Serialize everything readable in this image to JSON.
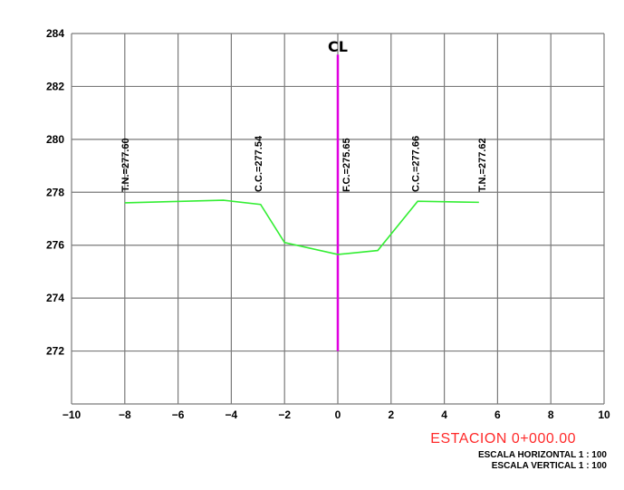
{
  "chart_data": {
    "type": "line",
    "centerline_label": "CL",
    "x_ticks": [
      "−10",
      "−8",
      "−6",
      "−4",
      "−2",
      "0",
      "2",
      "4",
      "6",
      "8",
      "10"
    ],
    "y_ticks": [
      "284",
      "282",
      "280",
      "278",
      "276",
      "274",
      "272"
    ],
    "xlim": [
      -10,
      10
    ],
    "ylim": [
      270,
      284
    ],
    "grid": true,
    "centerline": {
      "x": 0,
      "y_from": 272,
      "y_to": 283.2,
      "color": "#e000e0"
    },
    "profile": {
      "color": "#33ee33",
      "points": [
        [
          -8,
          277.6
        ],
        [
          -4.3,
          277.7
        ],
        [
          -2.9,
          277.54
        ],
        [
          -2,
          276.1
        ],
        [
          0,
          275.65
        ],
        [
          1.5,
          275.8
        ],
        [
          3,
          277.66
        ],
        [
          5.3,
          277.62
        ]
      ]
    },
    "annotations": [
      {
        "text": "T.N.=277.60",
        "x": -8
      },
      {
        "text": "C.C.=277.54",
        "x": -3
      },
      {
        "text": "F.C.=275.65",
        "x": 0.3
      },
      {
        "text": "C.C.=277.66",
        "x": 2.9
      },
      {
        "text": "T.N.=277.62",
        "x": 5.4
      }
    ]
  },
  "footer": {
    "station": "ESTACION 0+000.00",
    "station_color": "#ff2a2a",
    "scale_horizontal": "ESCALA HORIZONTAL 1 : 100",
    "scale_vertical": "ESCALA VERTICAL 1 : 100"
  }
}
